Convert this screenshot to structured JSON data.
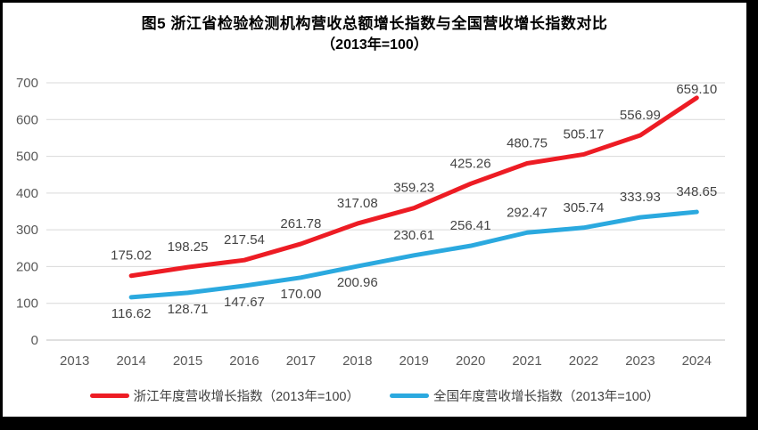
{
  "title": {
    "line1": "图5  浙江省检验检测机构营收总额增长指数与全国营收增长指数对比",
    "line2": "（2013年=100）"
  },
  "chart_data": {
    "type": "line",
    "title": "图5 浙江省检验检测机构营收总额增长指数与全国营收增长指数对比（2013年=100）",
    "categories": [
      "2013",
      "2014",
      "2015",
      "2016",
      "2017",
      "2018",
      "2019",
      "2020",
      "2021",
      "2022",
      "2023",
      "2024"
    ],
    "ylim": [
      0,
      700
    ],
    "ytick_step": 100,
    "yticks": [
      0,
      100,
      200,
      300,
      400,
      500,
      600,
      700
    ],
    "grid": "horizontal",
    "legend_position": "bottom",
    "value_format": "0.00",
    "series": [
      {
        "name": "浙江年度营收增长指数（2013年=100）",
        "color": "#ed1c24",
        "start_category": "2014",
        "values": [
          175.02,
          198.25,
          217.54,
          261.78,
          317.08,
          359.23,
          425.26,
          480.75,
          505.17,
          556.99,
          659.1
        ],
        "label_side": [
          "above",
          "above",
          "above",
          "above",
          "above",
          "above",
          "above",
          "above",
          "above",
          "above",
          "tip"
        ]
      },
      {
        "name": "全国年度营收增长指数（2013年=100）",
        "color": "#2ba9df",
        "start_category": "2014",
        "values": [
          116.62,
          128.71,
          147.67,
          170.0,
          200.96,
          230.61,
          256.41,
          292.47,
          305.74,
          333.93,
          348.65
        ],
        "label_side": [
          "below",
          "below",
          "below",
          "below",
          "below",
          "above",
          "above",
          "above",
          "above",
          "above",
          "above"
        ]
      }
    ]
  },
  "colors": {
    "frame": "#000000",
    "background": "#ffffff",
    "gridline": "#d9d9d9",
    "axis_line": "#bfbfbf",
    "tick_label": "#595959",
    "data_label": "#444444",
    "title_text": "#000000",
    "legend_text": "#404040"
  }
}
